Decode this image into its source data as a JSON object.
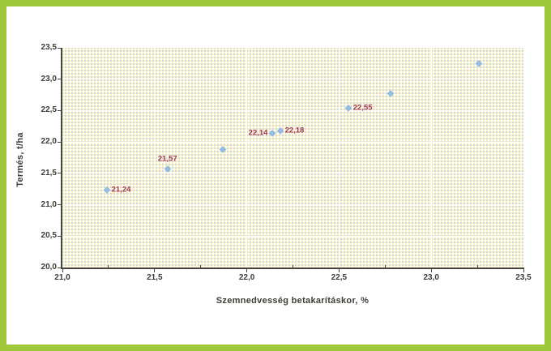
{
  "chart_data": {
    "type": "scatter",
    "title": "",
    "xlabel": "Szemnedvesség betakarításkor, %",
    "ylabel": "Termés, t/ha",
    "xlim": [
      21.0,
      23.5
    ],
    "ylim": [
      20.0,
      23.5
    ],
    "grid": "on",
    "legend_position": "none",
    "x_ticks": [
      {
        "v": 21.0,
        "label": "21,0"
      },
      {
        "v": 21.5,
        "label": "21,5"
      },
      {
        "v": 22.0,
        "label": "22,0"
      },
      {
        "v": 22.5,
        "label": "22,5"
      },
      {
        "v": 23.0,
        "label": "23,0"
      },
      {
        "v": 23.5,
        "label": "23,5"
      }
    ],
    "x_minor_ticks": [
      21.25,
      21.75,
      22.25,
      22.75,
      23.25
    ],
    "y_ticks": [
      {
        "v": 20.0,
        "label": "20,0"
      },
      {
        "v": 20.5,
        "label": "20,5"
      },
      {
        "v": 21.0,
        "label": "21,0"
      },
      {
        "v": 21.5,
        "label": "21,5"
      },
      {
        "v": 22.0,
        "label": "22,0"
      },
      {
        "v": 22.5,
        "label": "22,5"
      },
      {
        "v": 23.0,
        "label": "23,0"
      },
      {
        "v": 23.5,
        "label": "23,5"
      }
    ],
    "gridlines_horizontal": [
      20.5,
      21.0,
      21.5,
      22.0,
      22.5,
      23.0
    ],
    "gridlines_vertical": [
      21.5,
      22.0,
      22.5,
      23.0
    ],
    "points": [
      {
        "x": 21.24,
        "y": 21.24,
        "label": "21,24",
        "label_pos": "right"
      },
      {
        "x": 21.57,
        "y": 21.57,
        "label": "21,57",
        "label_pos": "above"
      },
      {
        "x": 21.87,
        "y": 21.88,
        "label": "",
        "label_pos": "none"
      },
      {
        "x": 22.14,
        "y": 22.14,
        "label": "22,14",
        "label_pos": "left"
      },
      {
        "x": 22.18,
        "y": 22.18,
        "label": "22,18",
        "label_pos": "right"
      },
      {
        "x": 22.55,
        "y": 22.55,
        "label": "22,55",
        "label_pos": "right"
      },
      {
        "x": 22.78,
        "y": 22.78,
        "label": "",
        "label_pos": "none"
      },
      {
        "x": 23.26,
        "y": 23.26,
        "label": "",
        "label_pos": "none"
      }
    ],
    "colors": {
      "frame_border": "#9ec73b",
      "plot_background": "#faf5c5",
      "plot_dot_white": "#ffffff",
      "plot_dot_blue": "#c9cdea",
      "gridline": "#ffffff",
      "axis": "#45453c",
      "tick_label": "#3d3d37",
      "marker": "#93bce6",
      "point_label": "#a23a52"
    }
  }
}
